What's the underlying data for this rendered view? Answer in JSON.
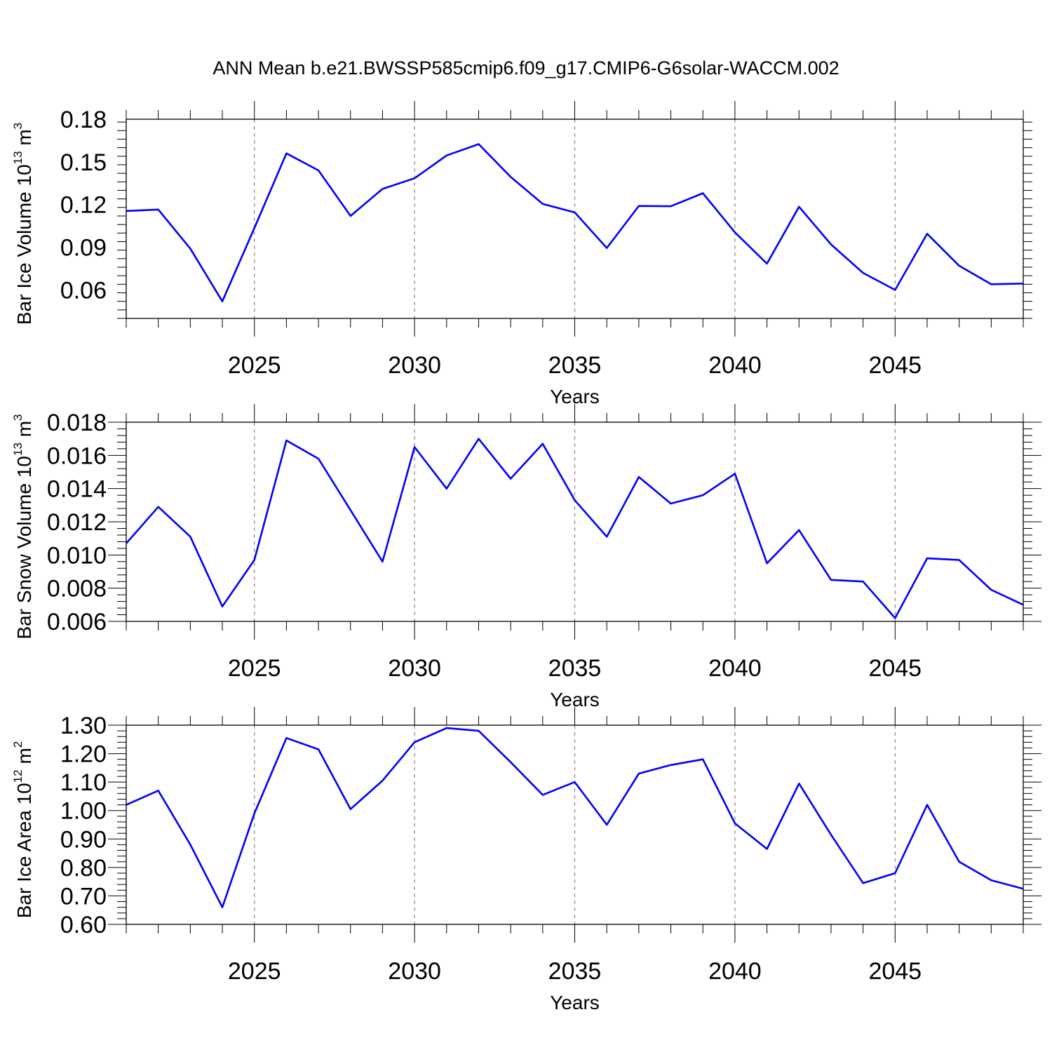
{
  "title": "ANN Mean b.e21.BWSSP585cmip6.f09_g17.CMIP6-G6solar-WACCM.002",
  "colors": {
    "line": "#0000ff",
    "axis": "#000000",
    "grid": "#888888"
  },
  "chart_data": [
    {
      "type": "line",
      "ylabel_main": "Bar Ice Volume 10",
      "ylabel_exp": "13",
      "ylabel_unit": " m",
      "ylabel_unit_exp": "3",
      "xlabel": "Years",
      "xlim": [
        2021,
        2049
      ],
      "ylim": [
        0.04,
        0.18
      ],
      "yticks": [
        0.06,
        0.09,
        0.12,
        0.15,
        0.18
      ],
      "ytick_labels": [
        "0.06",
        "0.09",
        "0.12",
        "0.15",
        "0.18"
      ],
      "xticks": [
        2025,
        2030,
        2035,
        2040,
        2045
      ],
      "xtick_labels": [
        "2025",
        "2030",
        "2035",
        "2040",
        "2045"
      ],
      "x": [
        2021,
        2022,
        2023,
        2024,
        2025,
        2026,
        2027,
        2028,
        2029,
        2030,
        2031,
        2032,
        2033,
        2034,
        2035,
        2036,
        2037,
        2038,
        2039,
        2040,
        2041,
        2042,
        2043,
        2044,
        2045,
        2046,
        2047,
        2048,
        2049
      ],
      "values": [
        0.1155,
        0.1165,
        0.089,
        0.052,
        0.1035,
        0.156,
        0.144,
        0.112,
        0.131,
        0.1385,
        0.1545,
        0.1625,
        0.1395,
        0.1205,
        0.1145,
        0.0895,
        0.119,
        0.1188,
        0.128,
        0.1005,
        0.0785,
        0.1185,
        0.092,
        0.072,
        0.06,
        0.0995,
        0.077,
        0.064,
        0.0645
      ]
    },
    {
      "type": "line",
      "ylabel_main": "Bar Snow Volume 10",
      "ylabel_exp": "13",
      "ylabel_unit": " m",
      "ylabel_unit_exp": "3",
      "xlabel": "Years",
      "xlim": [
        2021,
        2049
      ],
      "ylim": [
        0.006,
        0.018
      ],
      "yticks": [
        0.006,
        0.008,
        0.01,
        0.012,
        0.014,
        0.016,
        0.018
      ],
      "ytick_labels": [
        "0.006",
        "0.008",
        "0.010",
        "0.012",
        "0.014",
        "0.016",
        "0.018"
      ],
      "xticks": [
        2025,
        2030,
        2035,
        2040,
        2045
      ],
      "xtick_labels": [
        "2025",
        "2030",
        "2035",
        "2040",
        "2045"
      ],
      "x": [
        2021,
        2022,
        2023,
        2024,
        2025,
        2026,
        2027,
        2028,
        2029,
        2030,
        2031,
        2032,
        2033,
        2034,
        2035,
        2036,
        2037,
        2038,
        2039,
        2040,
        2041,
        2042,
        2043,
        2044,
        2045,
        2046,
        2047,
        2048,
        2049
      ],
      "values": [
        0.0107,
        0.0129,
        0.0111,
        0.0069,
        0.0097,
        0.0169,
        0.0158,
        0.0127,
        0.0096,
        0.0165,
        0.014,
        0.017,
        0.0146,
        0.0167,
        0.0133,
        0.0111,
        0.0147,
        0.0131,
        0.0136,
        0.0149,
        0.0095,
        0.0115,
        0.0085,
        0.0084,
        0.0062,
        0.0098,
        0.0097,
        0.0079,
        0.007
      ]
    },
    {
      "type": "line",
      "ylabel_main": "Bar Ice Area 10",
      "ylabel_exp": "12",
      "ylabel_unit": " m",
      "ylabel_unit_exp": "2",
      "xlabel": "Years",
      "xlim": [
        2021,
        2049
      ],
      "ylim": [
        0.6,
        1.3
      ],
      "yticks": [
        0.6,
        0.7,
        0.8,
        0.9,
        1.0,
        1.1,
        1.2,
        1.3
      ],
      "ytick_labels": [
        "0.60",
        "0.70",
        "0.80",
        "0.90",
        "1.00",
        "1.10",
        "1.20",
        "1.30"
      ],
      "xticks": [
        2025,
        2030,
        2035,
        2040,
        2045
      ],
      "xtick_labels": [
        "2025",
        "2030",
        "2035",
        "2040",
        "2045"
      ],
      "x": [
        2021,
        2022,
        2023,
        2024,
        2025,
        2026,
        2027,
        2028,
        2029,
        2030,
        2031,
        2032,
        2033,
        2034,
        2035,
        2036,
        2037,
        2038,
        2039,
        2040,
        2041,
        2042,
        2043,
        2044,
        2045,
        2046,
        2047,
        2048,
        2049
      ],
      "values": [
        1.02,
        1.07,
        0.88,
        0.66,
        0.99,
        1.255,
        1.215,
        1.005,
        1.105,
        1.24,
        1.29,
        1.28,
        1.17,
        1.055,
        1.1,
        0.95,
        1.13,
        1.16,
        1.18,
        0.955,
        0.865,
        1.095,
        0.915,
        0.745,
        0.78,
        1.02,
        0.82,
        0.755,
        0.725
      ]
    }
  ]
}
